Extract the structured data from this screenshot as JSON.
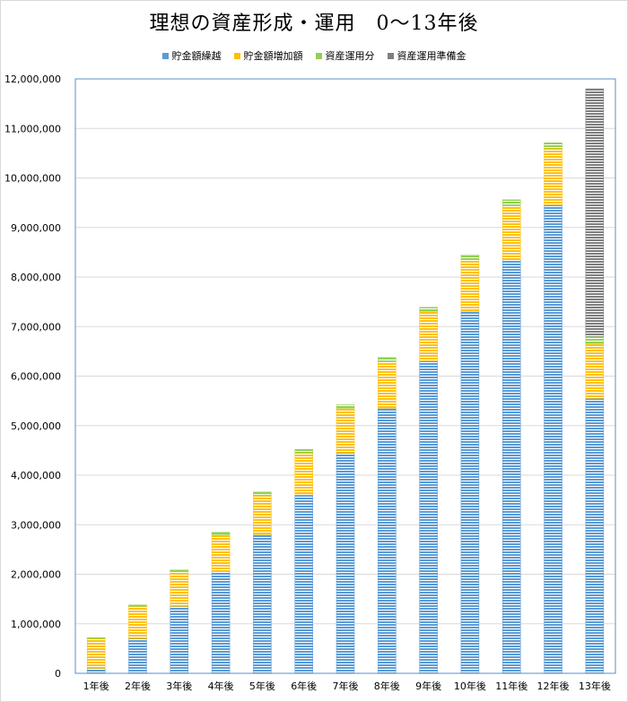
{
  "chart_data": {
    "type": "bar",
    "stacked": true,
    "title": "理想の資産形成・運用　0～13年後",
    "categories": [
      "1年後",
      "2年後",
      "3年後",
      "4年後",
      "5年後",
      "6年後",
      "7年後",
      "8年後",
      "9年後",
      "10年後",
      "11年後",
      "12年後",
      "13年後"
    ],
    "series": [
      {
        "name": "貯金額繰越",
        "color": "#5b9bd5",
        "values": [
          100000,
          700000,
          1350000,
          2050000,
          2800000,
          3600000,
          4450000,
          5350000,
          6300000,
          7300000,
          8350000,
          9450000,
          5550000
        ]
      },
      {
        "name": "貯金額増加額",
        "color": "#ffc000",
        "values": [
          600000,
          650000,
          700000,
          750000,
          800000,
          850000,
          900000,
          950000,
          1000000,
          1050000,
          1100000,
          1150000,
          1100000
        ]
      },
      {
        "name": "資産運用分",
        "color": "#92d050",
        "values": [
          20000,
          30000,
          40000,
          50000,
          60000,
          70000,
          70000,
          80000,
          90000,
          100000,
          110000,
          110000,
          150000
        ]
      },
      {
        "name": "資産運用準備金",
        "color": "#7f7f7f",
        "values": [
          0,
          0,
          0,
          0,
          0,
          0,
          0,
          0,
          0,
          0,
          0,
          0,
          5000000
        ]
      }
    ],
    "ylim": [
      0,
      12000000
    ],
    "yticks": [
      "0",
      "1,000,000",
      "2,000,000",
      "3,000,000",
      "4,000,000",
      "5,000,000",
      "6,000,000",
      "7,000,000",
      "8,000,000",
      "9,000,000",
      "10,000,000",
      "11,000,000",
      "12,000,000"
    ],
    "grid": true,
    "legend_position": "top"
  }
}
